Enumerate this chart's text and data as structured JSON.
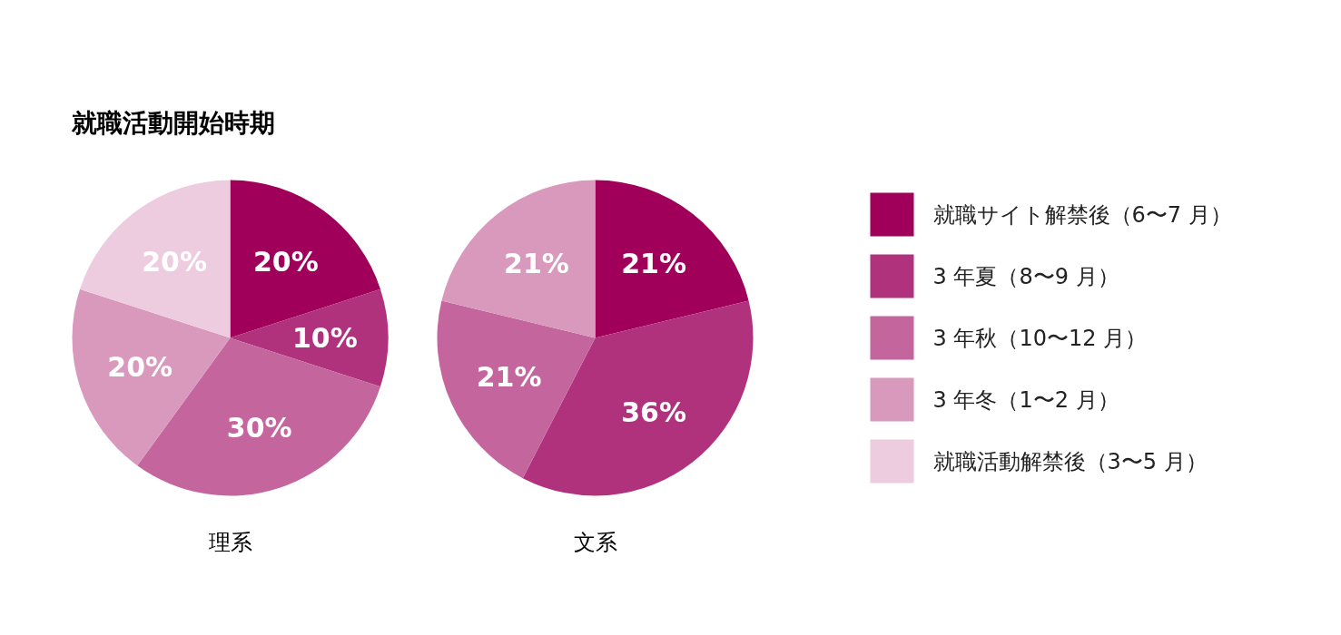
{
  "chart_data": [
    {
      "type": "pie",
      "title": "就職活動開始時期",
      "xlabel": "理系",
      "legend": "right",
      "categories": [
        "就職サイト解禁後（6〜7 月）",
        "3 年夏（8〜9 月）",
        "3 年秋（10〜12 月）",
        "3 年冬（1〜2 月）",
        "就職活動解禁後（3〜5 月）"
      ],
      "values": [
        20,
        10,
        30,
        20,
        20
      ],
      "value_labels": [
        "20%",
        "10%",
        "30%",
        "20%",
        "20%"
      ],
      "colors": [
        "#a0005a",
        "#b0327c",
        "#c4669d",
        "#d899bd",
        "#edcce0"
      ]
    },
    {
      "type": "pie",
      "xlabel": "文系",
      "categories": [
        null,
        null,
        null,
        null
      ],
      "values": [
        21,
        36,
        21,
        21
      ],
      "value_labels": [
        "21%",
        "36%",
        "21%",
        "21%"
      ],
      "colors": [
        "#a0005a",
        "#b0327c",
        "#c4669d",
        "#d899bd"
      ]
    }
  ]
}
